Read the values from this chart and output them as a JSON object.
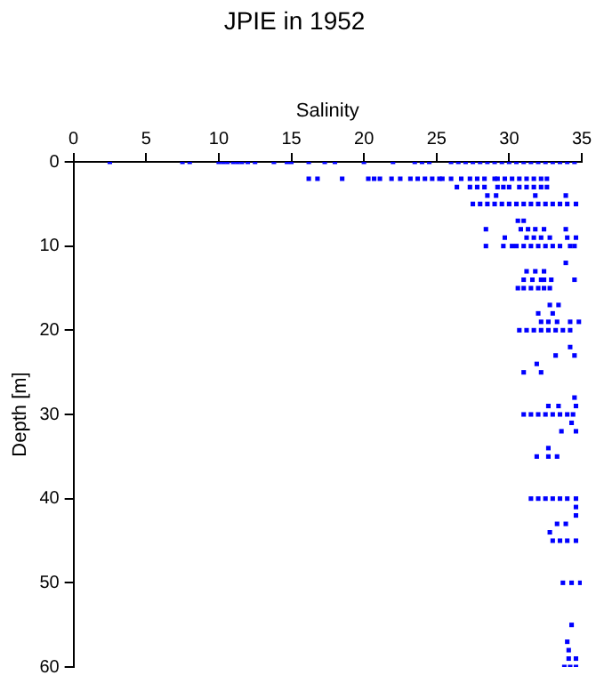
{
  "chart_data": {
    "type": "scatter",
    "title": "JPIE in 1952",
    "xlabel": "Salinity",
    "ylabel": "Depth [m]",
    "xlim": [
      0,
      35
    ],
    "xticks": [
      0,
      5,
      10,
      15,
      20,
      25,
      30,
      35
    ],
    "ylim": [
      60,
      0
    ],
    "yticks": [
      0,
      10,
      20,
      30,
      40,
      50,
      60
    ],
    "grid": false,
    "legend": false,
    "marker": "square",
    "series": [
      {
        "color": "#0000ff",
        "x": [
          2.5,
          7.5,
          8,
          10,
          10.3,
          10.6,
          11,
          11.3,
          11.6,
          12,
          12.5,
          13.8,
          14.7,
          15,
          16.2,
          17.3,
          18,
          20,
          22,
          23.5,
          24,
          24.5,
          26,
          26.5,
          27,
          27.5,
          28,
          28.5,
          29,
          29.5,
          30,
          30.5,
          31,
          31.5,
          32,
          32.5,
          33,
          33.5,
          34,
          34.5,
          16.2,
          16.8,
          18.5,
          20.3,
          20.7,
          21.1,
          21.9,
          22.5,
          23.2,
          23.7,
          24.2,
          24.7,
          25.2,
          25.4,
          26,
          26.7,
          27.3,
          27.8,
          28.3,
          29,
          29.2,
          29.7,
          30.2,
          30.7,
          31.2,
          31.7,
          32.2,
          32.6,
          26.4,
          27.3,
          27.8,
          28.3,
          29.2,
          29.6,
          30,
          30.7,
          31.2,
          31.7,
          32.2,
          32.6,
          28.5,
          29.1,
          31.8,
          33.9,
          27.5,
          28,
          28.5,
          29,
          29.5,
          30,
          30.5,
          31,
          31.5,
          32,
          32.5,
          33,
          33.5,
          34,
          34.6,
          30.6,
          31,
          28.4,
          30.8,
          31.3,
          31.8,
          32.4,
          33.9,
          29.7,
          31.2,
          31.7,
          32.2,
          32.8,
          34,
          34.6,
          28.4,
          29.6,
          30.2,
          30.5,
          31,
          31.5,
          32,
          32.5,
          33,
          33.5,
          34.2,
          34.5,
          33.9,
          31.2,
          31.8,
          32.4,
          31,
          31.6,
          32.2,
          32.4,
          32.9,
          34.5,
          30.6,
          31,
          31.5,
          32,
          32.4,
          32.8,
          32.8,
          33.4,
          32,
          33,
          32.2,
          32.7,
          33.3,
          34.2,
          34.8,
          30.7,
          31.2,
          31.7,
          32.2,
          32.7,
          33.2,
          33.7,
          34.2,
          34.2,
          33.2,
          34.5,
          31.9,
          31,
          32.2,
          34.5,
          32.7,
          33.4,
          34.6,
          31,
          31.5,
          32,
          32.5,
          33,
          33.5,
          34,
          34.4,
          34.3,
          33.6,
          34.6,
          32.7,
          31.9,
          32.7,
          33.3,
          31.5,
          32,
          32.5,
          33,
          33.5,
          34,
          34.6,
          34.6,
          34.6,
          33.3,
          33.9,
          32.8,
          33,
          33.5,
          34,
          34.6,
          33.7,
          34.3,
          34.9,
          34.3,
          34,
          34.1,
          34.1,
          34.6,
          33.8,
          34.2,
          34.6
        ],
        "values": [
          0,
          0,
          0,
          0,
          0,
          0,
          0,
          0,
          0,
          0,
          0,
          0,
          0,
          0,
          0,
          0,
          0,
          0,
          0,
          0,
          0,
          0,
          0,
          0,
          0,
          0,
          0,
          0,
          0,
          0,
          0,
          0,
          0,
          0,
          0,
          0,
          0,
          0,
          0,
          0,
          2,
          2,
          2,
          2,
          2,
          2,
          2,
          2,
          2,
          2,
          2,
          2,
          2,
          2,
          2,
          2,
          2,
          2,
          2,
          2,
          2,
          2,
          2,
          2,
          2,
          2,
          2,
          2,
          3,
          3,
          3,
          3,
          3,
          3,
          3,
          3,
          3,
          3,
          3,
          3,
          4,
          4,
          4,
          4,
          5,
          5,
          5,
          5,
          5,
          5,
          5,
          5,
          5,
          5,
          5,
          5,
          5,
          5,
          5,
          7,
          7,
          8,
          8,
          8,
          8,
          8,
          8,
          9,
          9,
          9,
          9,
          9,
          9,
          9,
          10,
          10,
          10,
          10,
          10,
          10,
          10,
          10,
          10,
          10,
          10,
          10,
          12,
          13,
          13,
          13,
          14,
          14,
          14,
          14,
          14,
          14,
          15,
          15,
          15,
          15,
          15,
          15,
          17,
          17,
          18,
          18,
          19,
          19,
          19,
          19,
          19,
          20,
          20,
          20,
          20,
          20,
          20,
          20,
          20,
          22,
          23,
          23,
          24,
          25,
          25,
          28,
          29,
          29,
          29,
          30,
          30,
          30,
          30,
          30,
          30,
          30,
          30,
          31,
          32,
          32,
          34,
          35,
          35,
          35,
          40,
          40,
          40,
          40,
          40,
          40,
          40,
          41,
          42,
          43,
          43,
          44,
          45,
          45,
          45,
          45,
          50,
          50,
          50,
          55,
          57,
          58,
          59,
          59,
          60,
          60,
          60
        ]
      }
    ]
  }
}
